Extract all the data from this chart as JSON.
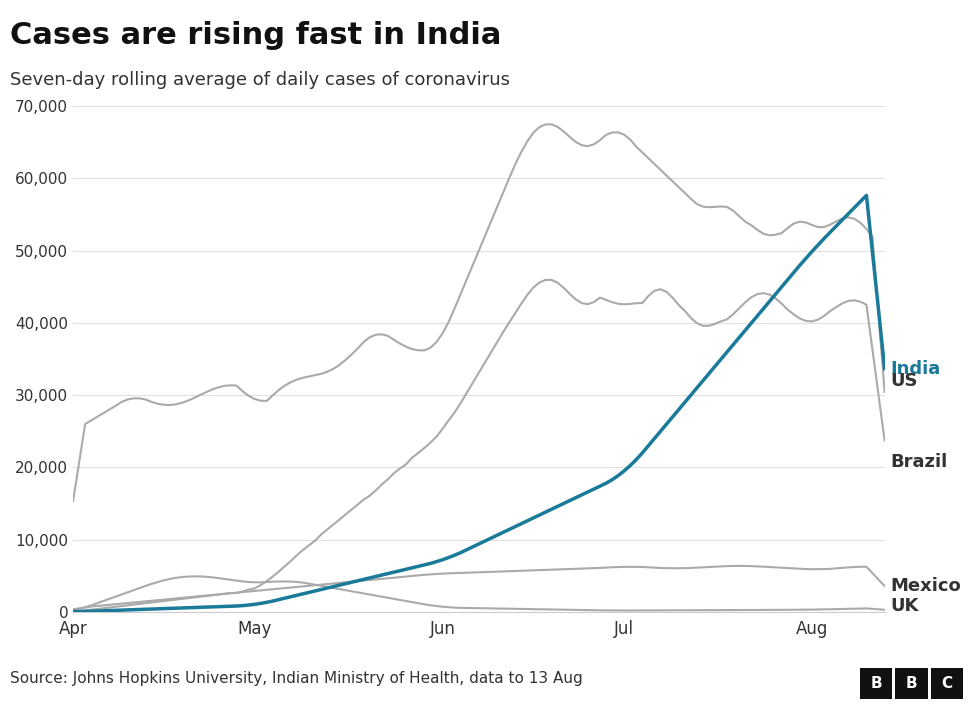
{
  "title": "Cases are rising fast in India",
  "subtitle": "Seven-day rolling average of daily cases of coronavirus",
  "source": "Source: Johns Hopkins University, Indian Ministry of Health, data to 13 Aug",
  "title_fontsize": 22,
  "subtitle_fontsize": 13,
  "source_fontsize": 11,
  "india_color": "#1a7a9a",
  "gray_color": "#aaaaaa",
  "label_india": "India",
  "label_us": "US",
  "label_brazil": "Brazil",
  "label_mexico": "Mexico",
  "label_uk": "UK",
  "ylim": [
    0,
    70000
  ],
  "yticks": [
    0,
    10000,
    20000,
    30000,
    40000,
    50000,
    60000,
    70000
  ],
  "background_color": "#ffffff"
}
